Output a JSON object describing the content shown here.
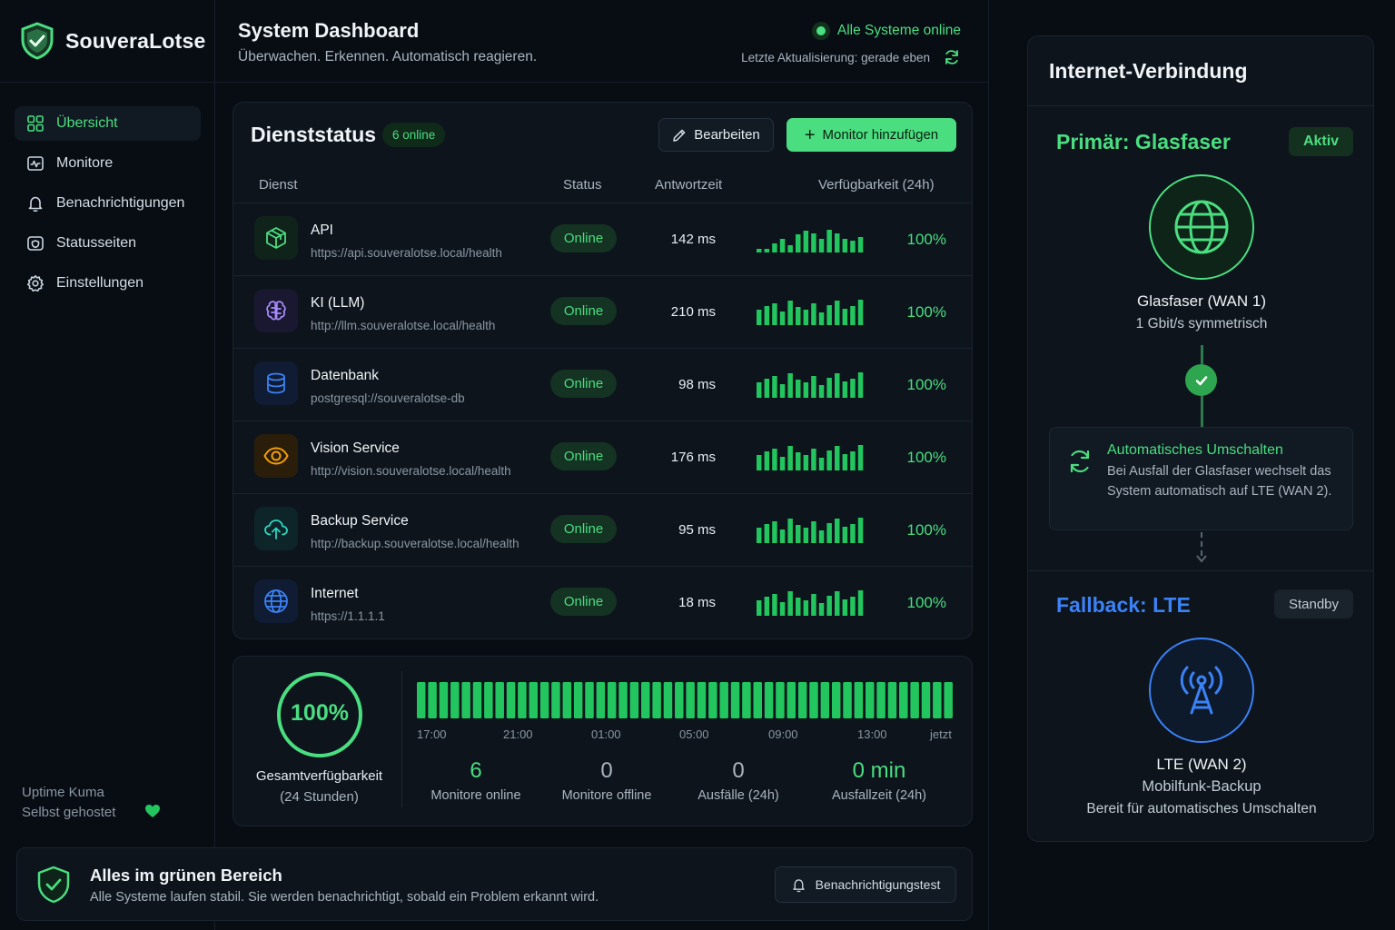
{
  "brand": {
    "name": "SouveraLotse"
  },
  "sidebar": {
    "items": [
      {
        "label": "Übersicht",
        "icon": "grid-icon",
        "active": true
      },
      {
        "label": "Monitore",
        "icon": "monitor-icon"
      },
      {
        "label": "Benachrichtigungen",
        "icon": "bell-icon"
      },
      {
        "label": "Statusseiten",
        "icon": "status-page-icon"
      },
      {
        "label": "Einstellungen",
        "icon": "gear-icon"
      }
    ],
    "footer_line1": "Uptime Kuma",
    "footer_line2": "Selbst gehostet"
  },
  "header": {
    "title": "System Dashboard",
    "subtitle": "Überwachen. Erkennen. Automatisch reagieren.",
    "status": "Alle Systeme online",
    "last_update": "Letzte Aktualisierung: gerade eben"
  },
  "services": {
    "title": "Dienststatus",
    "badge": "6 online",
    "edit_label": "Bearbeiten",
    "add_label": "Monitor hinzufügen",
    "columns": [
      "Dienst",
      "Status",
      "Antwortzeit",
      "Verfügbarkeit (24h)"
    ],
    "rows": [
      {
        "name": "API",
        "url": "https://api.souveralotse.local/health",
        "status": "Online",
        "response": "142 ms",
        "availability": "100%",
        "icon": "cube-icon",
        "color": "#4ade80",
        "spark": [
          0.15,
          0.15,
          0.35,
          0.55,
          0.3,
          0.7,
          0.85,
          0.75,
          0.55,
          0.9,
          0.75,
          0.55,
          0.45,
          0.6
        ]
      },
      {
        "name": "KI (LLM)",
        "url": "http://llm.souveralotse.local/health",
        "status": "Online",
        "response": "210 ms",
        "availability": "100%",
        "icon": "brain-icon",
        "color": "#a78bfa",
        "spark": [
          0.6,
          0.75,
          0.85,
          0.55,
          0.95,
          0.7,
          0.6,
          0.85,
          0.5,
          0.8,
          0.95,
          0.65,
          0.75,
          1.0
        ]
      },
      {
        "name": "Datenbank",
        "url": "postgresql://souveralotse-db",
        "status": "Online",
        "response": "98 ms",
        "availability": "100%",
        "icon": "database-icon",
        "color": "#3b82f6",
        "spark": [
          0.6,
          0.75,
          0.85,
          0.55,
          0.95,
          0.7,
          0.6,
          0.85,
          0.5,
          0.8,
          0.95,
          0.65,
          0.75,
          1.0
        ]
      },
      {
        "name": "Vision Service",
        "url": "http://vision.souveralotse.local/health",
        "status": "Online",
        "response": "176 ms",
        "availability": "100%",
        "icon": "eye-icon",
        "color": "#f59e0b",
        "spark": [
          0.6,
          0.75,
          0.85,
          0.55,
          0.95,
          0.7,
          0.6,
          0.85,
          0.5,
          0.8,
          0.95,
          0.65,
          0.75,
          1.0
        ]
      },
      {
        "name": "Backup Service",
        "url": "http://backup.souveralotse.local/health",
        "status": "Online",
        "response": "95 ms",
        "availability": "100%",
        "icon": "cloud-upload-icon",
        "color": "#2dd4bf",
        "spark": [
          0.6,
          0.75,
          0.85,
          0.55,
          0.95,
          0.7,
          0.6,
          0.85,
          0.5,
          0.8,
          0.95,
          0.65,
          0.75,
          1.0
        ]
      },
      {
        "name": "Internet",
        "url": "https://1.1.1.1",
        "status": "Online",
        "response": "18 ms",
        "availability": "100%",
        "icon": "globe-icon",
        "color": "#3b82f6",
        "spark": [
          0.6,
          0.75,
          0.85,
          0.55,
          0.95,
          0.7,
          0.6,
          0.85,
          0.5,
          0.8,
          0.95,
          0.65,
          0.75,
          1.0
        ]
      }
    ]
  },
  "uptime": {
    "percent": "100%",
    "label": "Gesamtverfügbarkeit",
    "period": "(24 Stunden)",
    "ticks": [
      "17:00",
      "21:00",
      "01:00",
      "05:00",
      "09:00",
      "13:00",
      "jetzt"
    ],
    "stats": [
      {
        "value": "6",
        "label": "Monitore online",
        "color": "#4ade80"
      },
      {
        "value": "0",
        "label": "Monitore offline",
        "color": "#aab4bf"
      },
      {
        "value": "0",
        "label": "Ausfälle (24h)",
        "color": "#aab4bf"
      },
      {
        "value": "0 min",
        "label": "Ausfallzeit (24h)",
        "color": "#4ade80"
      }
    ]
  },
  "alert": {
    "title": "Alles im grünen Bereich",
    "text": "Alle Systeme laufen stabil. Sie werden benachrichtigt, sobald ein Problem erkannt wird.",
    "button": "Benachrichtigungstest"
  },
  "internet": {
    "title": "Internet-Verbindung",
    "primary": {
      "title": "Primär: Glasfaser",
      "badge": "Aktiv",
      "name": "Glasfaser (WAN 1)",
      "desc": "1 Gbit/s symmetrisch"
    },
    "switch": {
      "title": "Automatisches Umschalten",
      "text": "Bei Ausfall der Glasfaser wechselt das System automatisch auf LTE (WAN 2)."
    },
    "fallback": {
      "title": "Fallback: LTE",
      "badge": "Standby",
      "name": "LTE (WAN 2)",
      "desc": "Mobilfunk-Backup",
      "note": "Bereit für automatisches Umschalten"
    }
  },
  "colors": {
    "accent": "#4ade80",
    "blue": "#3b82f6",
    "background": "#080d14",
    "card": "#0d141c"
  }
}
